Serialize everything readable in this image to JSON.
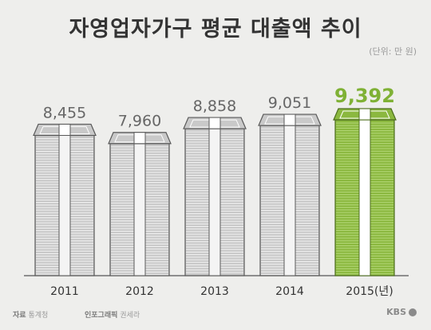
{
  "title": "자영업자가구 평균 대출액 추이",
  "unit": "(단위: 만 원)",
  "footer": {
    "source_label": "자료",
    "source_value": "통계청",
    "credit_label": "인포그래픽",
    "credit_value": "권세라"
  },
  "logo": "KBS",
  "colors": {
    "bar_normal": "#c9c9c9",
    "bar_highlight": "#8bb83f",
    "label_normal": "#666666",
    "label_highlight": "#7fb135"
  },
  "chart_data": {
    "type": "bar",
    "categories": [
      "2011",
      "2012",
      "2013",
      "2014",
      "2015(년)"
    ],
    "values": [
      8455,
      7960,
      8858,
      9051,
      9392
    ],
    "value_labels": [
      "8,455",
      "7,960",
      "8,858",
      "9,051",
      "9,392"
    ],
    "highlight_index": 4,
    "title": "자영업자가구 평균 대출액 추이",
    "xlabel": "",
    "ylabel": "",
    "ylim": [
      0,
      10000
    ],
    "grid": false
  }
}
